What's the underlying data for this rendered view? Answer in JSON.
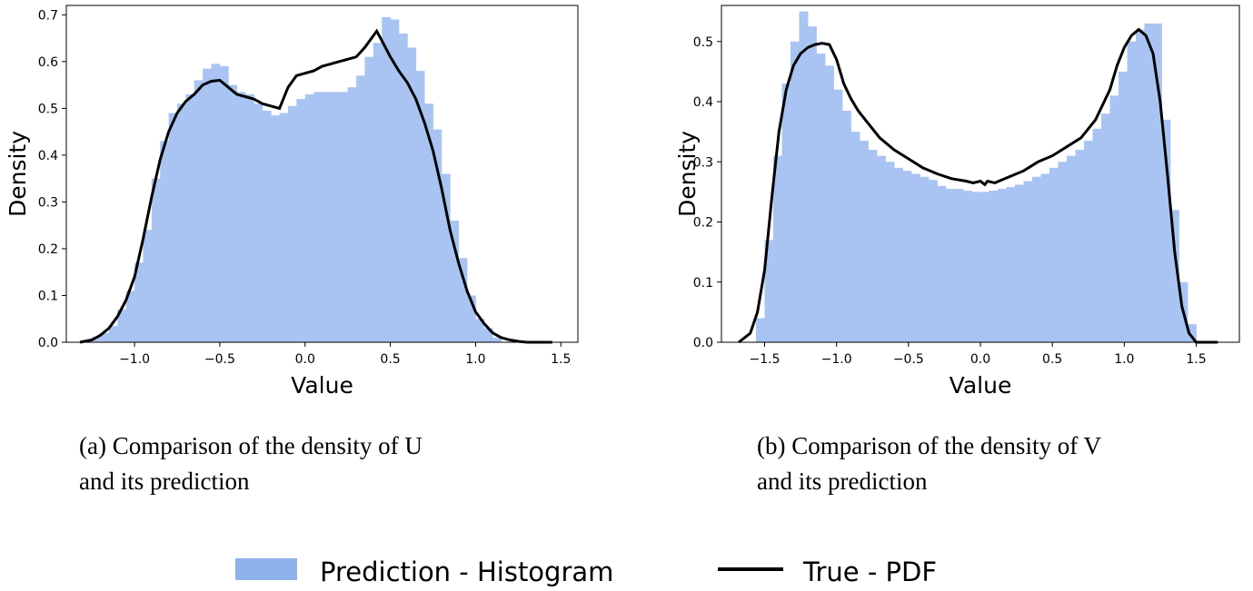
{
  "chart_data": [
    {
      "type": "histogram+line",
      "xlabel": "Value",
      "ylabel": "Density",
      "xlim": [
        -1.4,
        1.6
      ],
      "ylim": [
        0,
        0.72
      ],
      "xticks": [
        -1.0,
        -0.5,
        0.0,
        0.5,
        1.0,
        1.5
      ],
      "yticks": [
        0.0,
        0.1,
        0.2,
        0.3,
        0.4,
        0.5,
        0.6,
        0.7
      ],
      "caption": [
        "(a) Comparison of the density of U",
        "and its prediction"
      ],
      "histogram": {
        "name": "Prediction - Histogram",
        "color": "#a9c4f2",
        "bin_width": 0.05,
        "bins": [
          [
            -1.25,
            0.012
          ],
          [
            -1.2,
            0.02
          ],
          [
            -1.15,
            0.035
          ],
          [
            -1.1,
            0.07
          ],
          [
            -1.05,
            0.11
          ],
          [
            -1.0,
            0.17
          ],
          [
            -0.95,
            0.24
          ],
          [
            -0.9,
            0.35
          ],
          [
            -0.85,
            0.43
          ],
          [
            -0.8,
            0.49
          ],
          [
            -0.75,
            0.51
          ],
          [
            -0.7,
            0.53
          ],
          [
            -0.65,
            0.56
          ],
          [
            -0.6,
            0.585
          ],
          [
            -0.55,
            0.595
          ],
          [
            -0.5,
            0.59
          ],
          [
            -0.45,
            0.55
          ],
          [
            -0.4,
            0.535
          ],
          [
            -0.35,
            0.53
          ],
          [
            -0.3,
            0.51
          ],
          [
            -0.25,
            0.495
          ],
          [
            -0.2,
            0.485
          ],
          [
            -0.15,
            0.49
          ],
          [
            -0.1,
            0.505
          ],
          [
            -0.05,
            0.52
          ],
          [
            0.0,
            0.53
          ],
          [
            0.05,
            0.535
          ],
          [
            0.1,
            0.535
          ],
          [
            0.15,
            0.535
          ],
          [
            0.2,
            0.535
          ],
          [
            0.25,
            0.545
          ],
          [
            0.3,
            0.57
          ],
          [
            0.35,
            0.61
          ],
          [
            0.4,
            0.64
          ],
          [
            0.45,
            0.695
          ],
          [
            0.5,
            0.69
          ],
          [
            0.55,
            0.66
          ],
          [
            0.6,
            0.63
          ],
          [
            0.65,
            0.58
          ],
          [
            0.7,
            0.51
          ],
          [
            0.75,
            0.455
          ],
          [
            0.8,
            0.36
          ],
          [
            0.85,
            0.26
          ],
          [
            0.9,
            0.18
          ],
          [
            0.95,
            0.1
          ],
          [
            1.0,
            0.05
          ],
          [
            1.05,
            0.03
          ],
          [
            1.1,
            0.01
          ]
        ]
      },
      "line": {
        "name": "True - PDF",
        "color": "#000000",
        "points": [
          [
            -1.32,
            0.0
          ],
          [
            -1.25,
            0.005
          ],
          [
            -1.2,
            0.015
          ],
          [
            -1.15,
            0.03
          ],
          [
            -1.1,
            0.055
          ],
          [
            -1.05,
            0.09
          ],
          [
            -1.0,
            0.14
          ],
          [
            -0.95,
            0.22
          ],
          [
            -0.9,
            0.31
          ],
          [
            -0.85,
            0.39
          ],
          [
            -0.8,
            0.45
          ],
          [
            -0.75,
            0.49
          ],
          [
            -0.7,
            0.515
          ],
          [
            -0.65,
            0.53
          ],
          [
            -0.6,
            0.55
          ],
          [
            -0.55,
            0.558
          ],
          [
            -0.5,
            0.56
          ],
          [
            -0.45,
            0.545
          ],
          [
            -0.4,
            0.53
          ],
          [
            -0.35,
            0.525
          ],
          [
            -0.3,
            0.52
          ],
          [
            -0.25,
            0.51
          ],
          [
            -0.2,
            0.505
          ],
          [
            -0.15,
            0.5
          ],
          [
            -0.1,
            0.545
          ],
          [
            -0.05,
            0.57
          ],
          [
            0.0,
            0.575
          ],
          [
            0.05,
            0.58
          ],
          [
            0.1,
            0.59
          ],
          [
            0.15,
            0.595
          ],
          [
            0.2,
            0.6
          ],
          [
            0.25,
            0.605
          ],
          [
            0.3,
            0.61
          ],
          [
            0.35,
            0.63
          ],
          [
            0.42,
            0.665
          ],
          [
            0.45,
            0.645
          ],
          [
            0.5,
            0.61
          ],
          [
            0.55,
            0.58
          ],
          [
            0.6,
            0.555
          ],
          [
            0.65,
            0.52
          ],
          [
            0.7,
            0.47
          ],
          [
            0.75,
            0.41
          ],
          [
            0.8,
            0.33
          ],
          [
            0.85,
            0.24
          ],
          [
            0.9,
            0.17
          ],
          [
            0.95,
            0.11
          ],
          [
            1.0,
            0.065
          ],
          [
            1.05,
            0.04
          ],
          [
            1.1,
            0.02
          ],
          [
            1.15,
            0.01
          ],
          [
            1.2,
            0.005
          ],
          [
            1.25,
            0.002
          ],
          [
            1.3,
            0.0
          ],
          [
            1.45,
            0.0
          ]
        ]
      }
    },
    {
      "type": "histogram+line",
      "xlabel": "Value",
      "ylabel": "Density",
      "xlim": [
        -1.8,
        1.8
      ],
      "ylim": [
        0,
        0.56
      ],
      "xticks": [
        -1.5,
        -1.0,
        -0.5,
        0.0,
        0.5,
        1.0,
        1.5
      ],
      "yticks": [
        0.0,
        0.1,
        0.2,
        0.3,
        0.4,
        0.5
      ],
      "caption": [
        "(b) Comparison of the density of V",
        "and its prediction"
      ],
      "histogram": {
        "name": "Prediction - Histogram",
        "color": "#a9c4f2",
        "bin_width": 0.06,
        "bins": [
          [
            -1.56,
            0.04
          ],
          [
            -1.5,
            0.17
          ],
          [
            -1.44,
            0.31
          ],
          [
            -1.38,
            0.43
          ],
          [
            -1.32,
            0.5
          ],
          [
            -1.26,
            0.55
          ],
          [
            -1.2,
            0.525
          ],
          [
            -1.14,
            0.48
          ],
          [
            -1.08,
            0.46
          ],
          [
            -1.02,
            0.42
          ],
          [
            -0.96,
            0.385
          ],
          [
            -0.9,
            0.35
          ],
          [
            -0.84,
            0.335
          ],
          [
            -0.78,
            0.32
          ],
          [
            -0.72,
            0.31
          ],
          [
            -0.66,
            0.3
          ],
          [
            -0.6,
            0.29
          ],
          [
            -0.54,
            0.285
          ],
          [
            -0.48,
            0.28
          ],
          [
            -0.42,
            0.275
          ],
          [
            -0.36,
            0.27
          ],
          [
            -0.3,
            0.26
          ],
          [
            -0.24,
            0.255
          ],
          [
            -0.18,
            0.255
          ],
          [
            -0.12,
            0.252
          ],
          [
            -0.06,
            0.25
          ],
          [
            0.0,
            0.25
          ],
          [
            0.06,
            0.252
          ],
          [
            0.12,
            0.255
          ],
          [
            0.18,
            0.258
          ],
          [
            0.24,
            0.262
          ],
          [
            0.3,
            0.268
          ],
          [
            0.36,
            0.275
          ],
          [
            0.42,
            0.28
          ],
          [
            0.48,
            0.29
          ],
          [
            0.54,
            0.3
          ],
          [
            0.6,
            0.31
          ],
          [
            0.66,
            0.32
          ],
          [
            0.72,
            0.335
          ],
          [
            0.78,
            0.355
          ],
          [
            0.84,
            0.38
          ],
          [
            0.9,
            0.41
          ],
          [
            0.96,
            0.45
          ],
          [
            1.02,
            0.5
          ],
          [
            1.08,
            0.52
          ],
          [
            1.14,
            0.53
          ],
          [
            1.2,
            0.53
          ],
          [
            1.26,
            0.37
          ],
          [
            1.32,
            0.22
          ],
          [
            1.38,
            0.1
          ],
          [
            1.44,
            0.03
          ]
        ]
      },
      "line": {
        "name": "True - PDF",
        "color": "#000000",
        "points": [
          [
            -1.68,
            0.0
          ],
          [
            -1.6,
            0.015
          ],
          [
            -1.55,
            0.05
          ],
          [
            -1.5,
            0.12
          ],
          [
            -1.45,
            0.24
          ],
          [
            -1.4,
            0.35
          ],
          [
            -1.35,
            0.42
          ],
          [
            -1.3,
            0.46
          ],
          [
            -1.25,
            0.48
          ],
          [
            -1.2,
            0.49
          ],
          [
            -1.15,
            0.495
          ],
          [
            -1.1,
            0.497
          ],
          [
            -1.05,
            0.495
          ],
          [
            -1.0,
            0.47
          ],
          [
            -0.95,
            0.43
          ],
          [
            -0.9,
            0.405
          ],
          [
            -0.85,
            0.385
          ],
          [
            -0.8,
            0.37
          ],
          [
            -0.7,
            0.34
          ],
          [
            -0.6,
            0.32
          ],
          [
            -0.5,
            0.305
          ],
          [
            -0.4,
            0.29
          ],
          [
            -0.3,
            0.28
          ],
          [
            -0.2,
            0.272
          ],
          [
            -0.1,
            0.268
          ],
          [
            -0.05,
            0.265
          ],
          [
            0.0,
            0.268
          ],
          [
            0.03,
            0.262
          ],
          [
            0.05,
            0.268
          ],
          [
            0.1,
            0.265
          ],
          [
            0.2,
            0.275
          ],
          [
            0.3,
            0.285
          ],
          [
            0.4,
            0.3
          ],
          [
            0.5,
            0.31
          ],
          [
            0.6,
            0.325
          ],
          [
            0.7,
            0.34
          ],
          [
            0.8,
            0.37
          ],
          [
            0.9,
            0.42
          ],
          [
            0.95,
            0.46
          ],
          [
            1.0,
            0.49
          ],
          [
            1.05,
            0.51
          ],
          [
            1.1,
            0.52
          ],
          [
            1.15,
            0.51
          ],
          [
            1.2,
            0.48
          ],
          [
            1.25,
            0.4
          ],
          [
            1.3,
            0.28
          ],
          [
            1.35,
            0.15
          ],
          [
            1.4,
            0.06
          ],
          [
            1.45,
            0.015
          ],
          [
            1.5,
            0.0
          ],
          [
            1.65,
            0.0
          ]
        ]
      }
    }
  ],
  "legend": {
    "histogram_label": "Prediction - Histogram",
    "line_label": "True - PDF",
    "histogram_color": "#8fb1ee",
    "line_color": "#000000"
  }
}
